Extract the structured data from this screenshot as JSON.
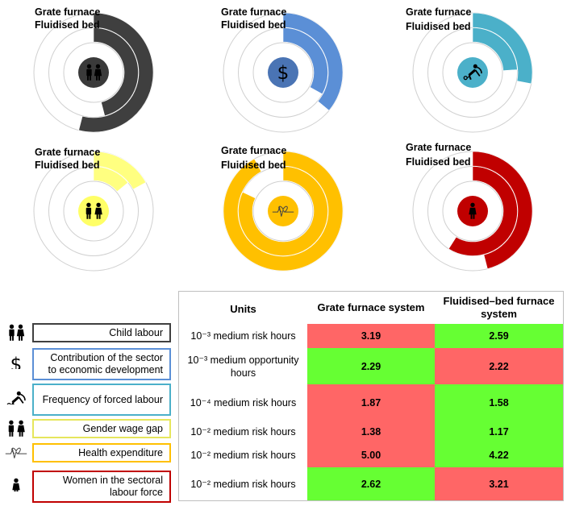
{
  "ring_labels": {
    "outer": "Grate furnace",
    "inner": "Fluidised bed"
  },
  "chart_data": {
    "type": "table",
    "title": "",
    "columns": [
      "Units",
      "Grate furnace system",
      "Fluidised–bed furnace system"
    ],
    "rows": [
      {
        "category": "Child labour",
        "units": "10⁻³ medium risk hours",
        "grate": 3.19,
        "fluidised": 2.59,
        "better": "fluidised",
        "color": "#3f3f3f",
        "icon": "child-labour-icon"
      },
      {
        "category": "Contribution of the sector to economic development",
        "units": "10⁻³ medium opportunity hours",
        "grate": 2.29,
        "fluidised": 2.22,
        "better": "grate",
        "color": "#5b8fd6",
        "icon": "dollar-icon"
      },
      {
        "category": "Frequency of forced labour",
        "units": "10⁻⁴ medium risk hours",
        "grate": 1.87,
        "fluidised": 1.58,
        "better": "fluidised",
        "color": "#4bb0c9",
        "icon": "forced-labour-icon"
      },
      {
        "category": "Gender wage gap",
        "units": "10⁻² medium risk hours",
        "grate": 1.38,
        "fluidised": 1.17,
        "better": "fluidised",
        "color": "#ffff80",
        "icon": "gender-icon"
      },
      {
        "category": "Health expenditure",
        "units": "10⁻² medium risk hours",
        "grate": 5.0,
        "fluidised": 4.22,
        "better": "fluidised",
        "color": "#ffc000",
        "icon": "heartbeat-icon"
      },
      {
        "category": "Women in the sectoral labour force",
        "units": "10⁻² medium risk hours",
        "grate": 2.62,
        "fluidised": 3.21,
        "better": "grate",
        "color": "#c00000",
        "icon": "woman-icon"
      }
    ],
    "radial_fractions": [
      {
        "category": "Child labour",
        "grate": 0.54,
        "fluidised": 0.46
      },
      {
        "category": "Contribution of the sector to economic development",
        "grate": 0.36,
        "fluidised": 0.33
      },
      {
        "category": "Frequency of forced labour",
        "grate": 0.28,
        "fluidised": 0.24
      },
      {
        "category": "Gender wage gap",
        "grate": 0.17,
        "fluidised": 0.14
      },
      {
        "category": "Health expenditure",
        "grate": 0.92,
        "fluidised": 0.82
      },
      {
        "category": "Women in the sectoral labour force",
        "grate": 0.46,
        "fluidised": 0.59
      }
    ],
    "colors": {
      "better": "#66ff33",
      "worse": "#ff6666"
    }
  }
}
